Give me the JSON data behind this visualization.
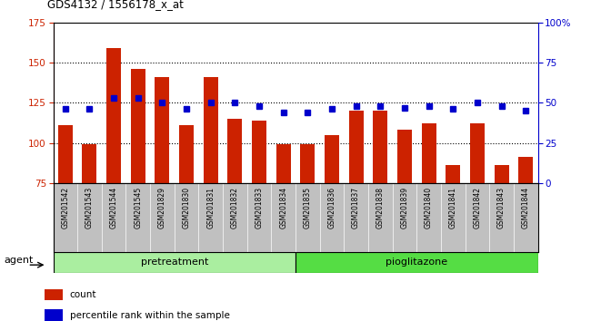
{
  "title": "GDS4132 / 1556178_x_at",
  "samples": [
    "GSM201542",
    "GSM201543",
    "GSM201544",
    "GSM201545",
    "GSM201829",
    "GSM201830",
    "GSM201831",
    "GSM201832",
    "GSM201833",
    "GSM201834",
    "GSM201835",
    "GSM201836",
    "GSM201837",
    "GSM201838",
    "GSM201839",
    "GSM201840",
    "GSM201841",
    "GSM201842",
    "GSM201843",
    "GSM201844"
  ],
  "counts": [
    111,
    99,
    159,
    146,
    141,
    111,
    141,
    115,
    114,
    99,
    99,
    105,
    120,
    120,
    108,
    112,
    86,
    112,
    86,
    91
  ],
  "percentiles_pct": [
    46,
    46,
    53,
    53,
    50,
    46,
    50,
    50,
    48,
    44,
    44,
    46,
    48,
    48,
    47,
    48,
    46,
    50,
    48,
    45
  ],
  "bar_color": "#cc2200",
  "square_color": "#0000cc",
  "left_ylim": [
    75,
    175
  ],
  "right_ylim": [
    0,
    100
  ],
  "left_yticks": [
    75,
    100,
    125,
    150,
    175
  ],
  "right_yticks": [
    0,
    25,
    50,
    75,
    100
  ],
  "right_yticklabels": [
    "0",
    "25",
    "50",
    "75",
    "100%"
  ],
  "dotted_lines": [
    100,
    125,
    150
  ],
  "group1_label": "pretreatment",
  "group2_label": "pioglitazone",
  "group1_count": 10,
  "group1_color": "#aaeea0",
  "group2_color": "#55dd44",
  "agent_label": "agent",
  "legend_count": "count",
  "legend_percentile": "percentile rank within the sample",
  "xlabel_bg_color": "#c0c0c0",
  "plot_bg_color": "#ffffff"
}
